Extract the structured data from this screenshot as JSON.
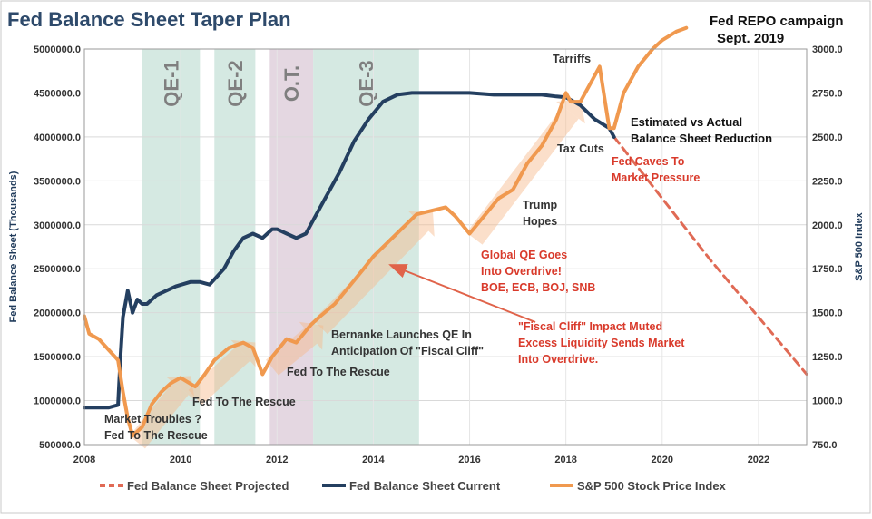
{
  "chart_data": {
    "type": "line",
    "title": "Fed Balance Sheet Taper Plan",
    "left_axis": {
      "label": "Fed Balance Sheet (Thousands)",
      "ylim": [
        500000,
        5000000
      ],
      "ticks": [
        "500000.0",
        "1000000.0",
        "1500000.0",
        "2000000.0",
        "2500000.0",
        "3000000.0",
        "3500000.0",
        "4000000.0",
        "4500000.0",
        "5000000.0"
      ]
    },
    "right_axis": {
      "label": "S&P 500 Index",
      "ylim": [
        750,
        3000
      ],
      "ticks": [
        "750.0",
        "1000.0",
        "1250.0",
        "1500.0",
        "1750.0",
        "2000.0",
        "2250.0",
        "2500.0",
        "2750.0",
        "3000.0"
      ]
    },
    "x_axis": {
      "xlim": [
        2008,
        2023
      ],
      "ticks": [
        "2008",
        "2010",
        "2012",
        "2014",
        "2016",
        "2018",
        "2020",
        "2022"
      ]
    },
    "grid": true,
    "legend_position": "bottom",
    "periods": [
      {
        "label": "QE-1",
        "start": 2009.2,
        "end": 2010.4,
        "color": "#d5e9e2"
      },
      {
        "label": "QE-2",
        "start": 2010.7,
        "end": 2011.55,
        "color": "#d5e9e2"
      },
      {
        "label": "O.T.",
        "start": 2011.85,
        "end": 2012.75,
        "color": "#e4d7e1"
      },
      {
        "label": "QE-3",
        "start": 2012.75,
        "end": 2014.95,
        "color": "#d5e9e2"
      }
    ],
    "series": [
      {
        "name": "Fed Balance Sheet Projected",
        "color": "#e06a55",
        "axis": "left",
        "style": "dashed",
        "x": [
          2019.0,
          2020.0,
          2021.0,
          2022.0,
          2023.0
        ],
        "y": [
          4000000,
          3300000,
          2600000,
          1950000,
          1300000
        ]
      },
      {
        "name": "Fed Balance Sheet Current",
        "color": "#243f60",
        "axis": "left",
        "style": "solid",
        "x": [
          2008.0,
          2008.5,
          2008.7,
          2008.75,
          2008.8,
          2008.9,
          2009.0,
          2009.1,
          2009.2,
          2009.3,
          2009.5,
          2009.7,
          2009.9,
          2010.2,
          2010.4,
          2010.6,
          2010.9,
          2011.1,
          2011.3,
          2011.5,
          2011.7,
          2011.9,
          2012.0,
          2012.2,
          2012.4,
          2012.6,
          2012.8,
          2013.0,
          2013.3,
          2013.6,
          2013.9,
          2014.2,
          2014.5,
          2014.8,
          2015.0,
          2015.5,
          2016.0,
          2016.5,
          2017.0,
          2017.5,
          2017.8,
          2018.0,
          2018.3,
          2018.6,
          2018.9,
          2019.0
        ],
        "y": [
          920000,
          920000,
          950000,
          1500000,
          1950000,
          2250000,
          2000000,
          2150000,
          2100000,
          2100000,
          2200000,
          2250000,
          2300000,
          2350000,
          2350000,
          2320000,
          2500000,
          2700000,
          2850000,
          2900000,
          2850000,
          2950000,
          2950000,
          2900000,
          2850000,
          2900000,
          3100000,
          3300000,
          3600000,
          3950000,
          4200000,
          4400000,
          4480000,
          4500000,
          4500000,
          4500000,
          4500000,
          4480000,
          4480000,
          4480000,
          4460000,
          4450000,
          4360000,
          4200000,
          4100000,
          4000000
        ]
      },
      {
        "name": "S&P 500 Stock Price Index",
        "color": "#f0994f",
        "axis": "right",
        "style": "solid",
        "x": [
          2008.0,
          2008.1,
          2008.3,
          2008.5,
          2008.7,
          2008.8,
          2008.9,
          2009.0,
          2009.2,
          2009.4,
          2009.6,
          2009.8,
          2010.0,
          2010.3,
          2010.5,
          2010.7,
          2011.0,
          2011.3,
          2011.5,
          2011.7,
          2011.9,
          2012.2,
          2012.4,
          2012.7,
          2012.9,
          2013.2,
          2013.5,
          2013.8,
          2014.0,
          2014.3,
          2014.6,
          2014.9,
          2015.2,
          2015.5,
          2015.7,
          2016.0,
          2016.3,
          2016.6,
          2016.9,
          2017.2,
          2017.5,
          2017.8,
          2018.0,
          2018.1,
          2018.3,
          2018.5,
          2018.7,
          2018.9,
          2019.0,
          2019.2,
          2019.5,
          2019.8,
          2020.0,
          2020.3,
          2020.5
        ],
        "y": [
          1480,
          1380,
          1350,
          1290,
          1230,
          1050,
          900,
          800,
          850,
          980,
          1050,
          1100,
          1130,
          1080,
          1150,
          1230,
          1300,
          1330,
          1300,
          1150,
          1250,
          1350,
          1330,
          1430,
          1480,
          1550,
          1650,
          1750,
          1820,
          1900,
          1980,
          2060,
          2080,
          2100,
          2050,
          1950,
          2050,
          2150,
          2200,
          2350,
          2450,
          2600,
          2750,
          2700,
          2700,
          2800,
          2900,
          2550,
          2550,
          2750,
          2900,
          3000,
          3050,
          3100,
          3120
        ]
      }
    ],
    "annotations": [
      {
        "text": "Market Troubles ?",
        "color": "dark"
      },
      {
        "text": "Fed To The Rescue",
        "color": "dark"
      },
      {
        "text": "Fed To The Rescue",
        "color": "dark"
      },
      {
        "text": "Fed To The Rescue",
        "color": "dark"
      },
      {
        "text": "Bernanke Launches QE In",
        "color": "dark"
      },
      {
        "text": "Anticipation Of \"Fiscal Cliff\"",
        "color": "dark"
      },
      {
        "text": "Global QE Goes",
        "color": "red"
      },
      {
        "text": "Into Overdrive!",
        "color": "red"
      },
      {
        "text": "BOE, ECB, BOJ, SNB",
        "color": "red"
      },
      {
        "text": "\"Fiscal Cliff\" Impact Muted",
        "color": "red"
      },
      {
        "text": "Excess Liquidity Sends Market",
        "color": "red"
      },
      {
        "text": "Into Overdrive.",
        "color": "red"
      },
      {
        "text": "Trump",
        "color": "dark"
      },
      {
        "text": "Hopes",
        "color": "dark"
      },
      {
        "text": "Tarriffs",
        "color": "dark"
      },
      {
        "text": "Tax Cuts",
        "color": "dark"
      },
      {
        "text": "Estimated vs Actual",
        "color": "black"
      },
      {
        "text": "Balance Sheet Reduction",
        "color": "black"
      },
      {
        "text": "Fed Caves To",
        "color": "red"
      },
      {
        "text": "Market Pressure",
        "color": "red"
      },
      {
        "text": "Fed REPO campaign",
        "color": "black"
      },
      {
        "text": "Sept. 2019",
        "color": "black"
      }
    ]
  }
}
